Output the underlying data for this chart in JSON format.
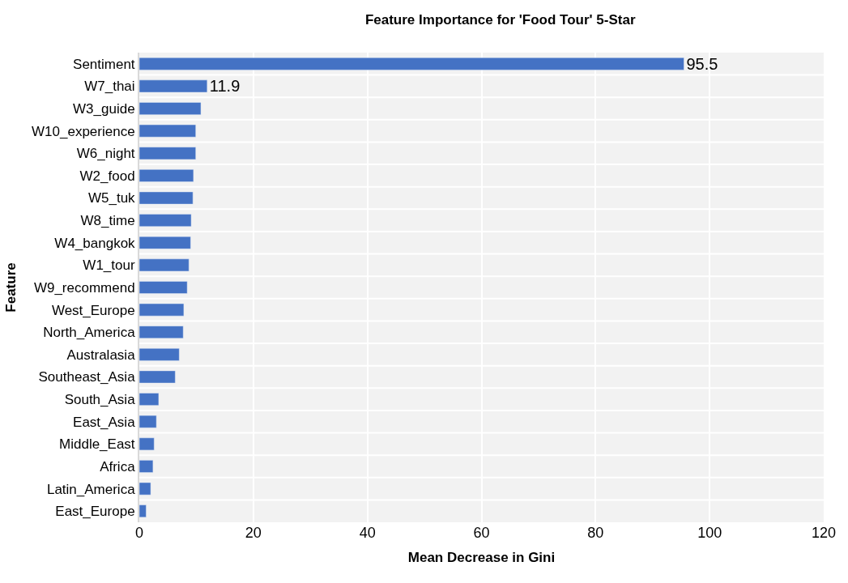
{
  "chart_data": {
    "type": "bar",
    "orientation": "horizontal",
    "title": "Feature Importance for 'Food Tour' 5-Star",
    "xlabel": "Mean Decrease in Gini",
    "ylabel": "Feature",
    "categories": [
      "Sentiment",
      "W7_thai",
      "W3_guide",
      "W10_experience",
      "W6_night",
      "W2_food",
      "W5_tuk",
      "W8_time",
      "W4_bangkok",
      "W1_tour",
      "W9_recommend",
      "West_Europe",
      "North_America",
      "Australasia",
      "Southeast_Asia",
      "South_Asia",
      "East_Asia",
      "Middle_East",
      "Africa",
      "Latin_America",
      "East_Europe"
    ],
    "values": [
      95.5,
      11.9,
      10.8,
      9.9,
      9.9,
      9.5,
      9.4,
      9.1,
      9.0,
      8.7,
      8.4,
      7.8,
      7.7,
      7.0,
      6.3,
      3.4,
      3.0,
      2.6,
      2.4,
      2.0,
      1.2
    ],
    "value_labels": [
      "95.5",
      "11.9",
      null,
      null,
      null,
      null,
      null,
      null,
      null,
      null,
      null,
      null,
      null,
      null,
      null,
      null,
      null,
      null,
      null,
      null,
      null
    ],
    "color": "#4472c4",
    "xlim": [
      0,
      120
    ],
    "xticks": [
      0,
      20,
      40,
      60,
      80,
      100,
      120
    ],
    "grid": true
  }
}
